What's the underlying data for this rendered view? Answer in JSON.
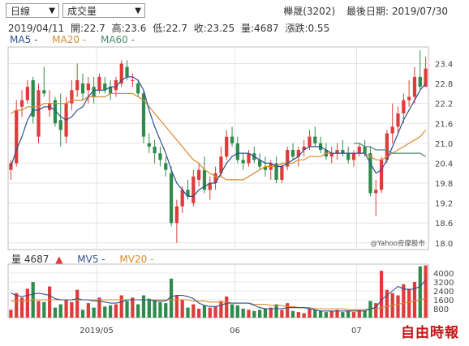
{
  "controls": {
    "period_select": "日線",
    "indicator_select": "成交量"
  },
  "header": {
    "stock": "櫸晟(3202)",
    "last_date_label": "最後日期: 2019/07/30"
  },
  "info": {
    "date": "2019/04/11",
    "open": "開:22.7",
    "high": "高:23.6",
    "low": "低:22.7",
    "close": "收:23.25",
    "volume": "量:4687",
    "change": "漲跌:0.55"
  },
  "ma_legend": {
    "ma5": "MA5 -",
    "ma20": "MA20 -",
    "ma60": "MA60 -"
  },
  "vol_legend": {
    "vol": "量 4687",
    "arrow": "▲",
    "mv5": "MV5 -",
    "mv20": "MV20 -"
  },
  "colors": {
    "up": "#e03b3b",
    "down": "#2e8b4b",
    "ma5": "#2f4f8f",
    "ma20": "#d98a2b",
    "ma60": "#4c8a6a"
  },
  "credit": "@Yahoo奇摩股市",
  "logo_text": "自由時報",
  "chart_data": {
    "type": "candlestick",
    "price_axis": {
      "ticks": [
        "23.4",
        "22.8",
        "22.2",
        "21.6",
        "21.0",
        "20.4",
        "19.8",
        "19.2",
        "18.6",
        "18.0"
      ],
      "range": [
        17.8,
        23.9
      ]
    },
    "volume_axis": {
      "ticks": [
        "4000",
        "3200",
        "2400",
        "1600",
        "800"
      ],
      "range": [
        0,
        4800
      ]
    },
    "x_labels": [
      {
        "label": "2019/05",
        "index": 16
      },
      {
        "label": "06",
        "index": 41
      },
      {
        "label": "07",
        "index": 63
      }
    ],
    "candles": [
      [
        20.2,
        20.5,
        19.9,
        20.4,
        700
      ],
      [
        20.4,
        22.3,
        20.3,
        22.0,
        2200
      ],
      [
        22.1,
        22.6,
        21.8,
        22.3,
        1800
      ],
      [
        22.3,
        22.9,
        22.2,
        22.7,
        2600
      ],
      [
        22.9,
        23.0,
        21.6,
        21.8,
        3200
      ],
      [
        21.2,
        22.8,
        21.0,
        22.6,
        1500
      ],
      [
        22.6,
        23.3,
        22.4,
        22.5,
        1400
      ],
      [
        22.0,
        22.6,
        21.8,
        22.2,
        2800
      ],
      [
        22.3,
        22.4,
        21.5,
        21.6,
        900
      ],
      [
        21.7,
        22.5,
        20.9,
        21.4,
        1200
      ],
      [
        21.2,
        22.4,
        21.0,
        22.2,
        1600
      ],
      [
        22.2,
        22.9,
        22.0,
        22.6,
        1400
      ],
      [
        22.6,
        23.4,
        22.4,
        22.9,
        2500
      ],
      [
        22.8,
        23.1,
        22.3,
        22.5,
        700
      ],
      [
        22.6,
        23.0,
        22.2,
        22.8,
        1300
      ],
      [
        22.7,
        23.0,
        22.2,
        22.4,
        900
      ],
      [
        22.6,
        23.1,
        22.5,
        23.0,
        1800
      ],
      [
        22.8,
        23.0,
        22.5,
        22.6,
        1000
      ],
      [
        22.7,
        22.9,
        22.3,
        22.5,
        1100
      ],
      [
        22.6,
        23.0,
        22.4,
        22.9,
        1200
      ],
      [
        22.8,
        23.5,
        22.7,
        23.4,
        2000
      ],
      [
        23.3,
        23.5,
        22.9,
        23.0,
        1500
      ],
      [
        22.9,
        23.1,
        22.7,
        22.9,
        1800
      ],
      [
        22.8,
        22.9,
        22.4,
        22.5,
        1200
      ],
      [
        22.5,
        22.6,
        21.0,
        21.2,
        2000
      ],
      [
        21.0,
        21.3,
        20.7,
        20.9,
        1700
      ],
      [
        20.9,
        21.1,
        20.4,
        20.7,
        1600
      ],
      [
        20.7,
        20.9,
        20.3,
        20.5,
        1400
      ],
      [
        20.4,
        20.6,
        20.0,
        20.2,
        1300
      ],
      [
        20.1,
        20.3,
        18.5,
        18.6,
        3500
      ],
      [
        18.6,
        19.3,
        18.0,
        19.1,
        2000
      ],
      [
        19.1,
        19.7,
        18.9,
        19.6,
        1600
      ],
      [
        19.6,
        19.9,
        19.3,
        19.4,
        900
      ],
      [
        19.2,
        20.2,
        19.1,
        20.0,
        1200
      ],
      [
        19.9,
        20.4,
        19.7,
        20.2,
        800
      ],
      [
        20.2,
        20.6,
        19.5,
        19.6,
        1100
      ],
      [
        19.6,
        20.0,
        19.3,
        19.8,
        900
      ],
      [
        19.8,
        20.3,
        19.6,
        20.1,
        1000
      ],
      [
        20.1,
        20.9,
        20.0,
        20.6,
        1500
      ],
      [
        20.6,
        21.4,
        20.5,
        21.2,
        1900
      ],
      [
        21.2,
        21.5,
        20.9,
        21.0,
        1200
      ],
      [
        21.0,
        21.2,
        20.4,
        20.5,
        1100
      ],
      [
        20.5,
        20.7,
        20.2,
        20.4,
        800
      ],
      [
        20.4,
        20.8,
        20.3,
        20.7,
        700
      ],
      [
        20.7,
        20.9,
        20.4,
        20.5,
        600
      ],
      [
        20.5,
        20.7,
        20.2,
        20.3,
        700
      ],
      [
        20.3,
        20.6,
        20.0,
        20.2,
        800
      ],
      [
        20.2,
        20.5,
        19.9,
        20.4,
        900
      ],
      [
        20.4,
        20.6,
        19.8,
        19.9,
        1200
      ],
      [
        19.9,
        20.4,
        19.8,
        20.3,
        700
      ],
      [
        20.3,
        20.9,
        20.2,
        20.8,
        1300
      ],
      [
        20.8,
        21.0,
        20.5,
        20.6,
        600
      ],
      [
        20.6,
        20.9,
        20.3,
        20.8,
        500
      ],
      [
        20.8,
        21.1,
        20.6,
        20.9,
        400
      ],
      [
        20.9,
        21.4,
        20.8,
        21.2,
        800
      ],
      [
        21.2,
        21.5,
        20.9,
        21.0,
        700
      ],
      [
        21.0,
        21.2,
        20.7,
        20.8,
        600
      ],
      [
        20.8,
        21.0,
        20.5,
        20.6,
        500
      ],
      [
        20.6,
        20.9,
        20.4,
        20.7,
        600
      ],
      [
        20.7,
        21.0,
        20.5,
        20.8,
        700
      ],
      [
        20.8,
        21.1,
        20.6,
        20.7,
        500
      ],
      [
        20.7,
        20.9,
        20.4,
        20.5,
        600
      ],
      [
        20.5,
        20.8,
        20.3,
        20.7,
        500
      ],
      [
        20.7,
        21.0,
        20.6,
        20.9,
        700
      ],
      [
        20.9,
        21.1,
        20.6,
        20.7,
        600
      ],
      [
        20.7,
        20.9,
        19.4,
        19.5,
        1500
      ],
      [
        19.5,
        19.9,
        18.8,
        19.6,
        1300
      ],
      [
        19.6,
        20.6,
        19.5,
        20.5,
        4200
      ],
      [
        20.5,
        21.4,
        20.4,
        21.3,
        2500
      ],
      [
        21.3,
        22.2,
        21.0,
        21.5,
        2200
      ],
      [
        21.5,
        22.1,
        21.3,
        21.9,
        2000
      ],
      [
        21.9,
        22.5,
        21.6,
        22.3,
        3000
      ],
      [
        22.3,
        22.9,
        22.1,
        22.4,
        2600
      ],
      [
        22.4,
        23.3,
        22.2,
        23.0,
        3200
      ],
      [
        23.0,
        23.8,
        22.6,
        22.7,
        4600
      ],
      [
        22.7,
        23.6,
        22.7,
        23.25,
        4687
      ]
    ],
    "ma5_line": [
      20.3,
      20.8,
      21.2,
      21.7,
      22.0,
      22.0,
      22.1,
      22.1,
      22.0,
      21.8,
      21.7,
      21.8,
      22.0,
      22.1,
      22.4,
      22.6,
      22.6,
      22.6,
      22.7,
      22.7,
      22.9,
      23.0,
      23.0,
      22.9,
      22.6,
      22.0,
      21.5,
      21.1,
      20.7,
      20.2,
      19.8,
      19.6,
      19.4,
      19.4,
      19.6,
      19.7,
      19.8,
      19.8,
      20.1,
      20.4,
      20.6,
      20.7,
      20.7,
      20.7,
      20.6,
      20.5,
      20.4,
      20.4,
      20.3,
      20.3,
      20.4,
      20.5,
      20.6,
      20.8,
      20.9,
      20.9,
      20.9,
      20.8,
      20.7,
      20.7,
      20.7,
      20.7,
      20.7,
      20.7,
      20.7,
      20.4,
      20.1,
      20.2,
      20.5,
      20.9,
      21.3,
      21.7,
      22.0,
      22.3,
      22.6,
      22.8
    ],
    "ma20_line": [
      21.9,
      22.0,
      22.0,
      22.1,
      22.1,
      22.1,
      22.2,
      22.2,
      22.2,
      22.2,
      22.2,
      22.3,
      22.3,
      22.3,
      22.4,
      22.4,
      22.4,
      22.4,
      22.5,
      22.5,
      22.5,
      22.5,
      22.5,
      22.4,
      22.3,
      22.1,
      21.9,
      21.7,
      21.5,
      21.3,
      21.1,
      20.9,
      20.7,
      20.5,
      20.4,
      20.2,
      20.1,
      20.0,
      20.0,
      19.9,
      19.9,
      19.9,
      19.9,
      20.0,
      20.1,
      20.2,
      20.3,
      20.3,
      20.3,
      20.4,
      20.4,
      20.4,
      20.5,
      20.5,
      20.6,
      20.6,
      20.6,
      20.7,
      20.7,
      20.7,
      20.7,
      20.7,
      20.7,
      20.7,
      20.7,
      20.6,
      20.5,
      20.5,
      20.6,
      20.7,
      20.8,
      20.9,
      21.0,
      21.1,
      21.2,
      21.4
    ],
    "ma60_line": [
      null,
      null,
      null,
      null,
      null,
      null,
      null,
      null,
      null,
      null,
      null,
      null,
      null,
      null,
      null,
      null,
      null,
      null,
      null,
      null,
      null,
      null,
      null,
      null,
      null,
      null,
      null,
      null,
      null,
      null,
      null,
      null,
      null,
      null,
      null,
      null,
      null,
      null,
      null,
      null,
      null,
      null,
      null,
      null,
      null,
      null,
      null,
      null,
      null,
      null,
      null,
      null,
      null,
      null,
      null,
      null,
      null,
      null,
      null,
      null,
      null,
      null,
      21.0,
      21.0,
      20.9,
      20.9,
      20.8,
      20.8,
      20.8,
      20.7,
      20.7,
      20.7,
      20.7,
      20.7,
      20.7,
      20.6
    ],
    "mv5_line": [
      2200,
      2000,
      1900,
      2000,
      2100,
      2200,
      2100,
      2000,
      1700,
      1600,
      1600,
      1600,
      1700,
      1600,
      1600,
      1500,
      1500,
      1400,
      1300,
      1300,
      1400,
      1600,
      1600,
      1600,
      1600,
      1600,
      1500,
      1500,
      1500,
      1900,
      2000,
      2000,
      1900,
      1700,
      1300,
      1100,
      1000,
      1000,
      1100,
      1300,
      1300,
      1300,
      1300,
      1300,
      1100,
      900,
      800,
      800,
      800,
      800,
      900,
      900,
      900,
      900,
      800,
      700,
      600,
      600,
      600,
      600,
      600,
      600,
      600,
      600,
      600,
      800,
      900,
      1600,
      2000,
      2400,
      2800,
      2600,
      2500,
      2600,
      2800,
      3400
    ],
    "mv20_line": [
      1500,
      1500,
      1500,
      1500,
      1600,
      1600,
      1600,
      1600,
      1600,
      1600,
      1600,
      1600,
      1600,
      1600,
      1600,
      1600,
      1600,
      1600,
      1600,
      1600,
      1600,
      1600,
      1600,
      1600,
      1600,
      1600,
      1600,
      1600,
      1600,
      1600,
      1600,
      1600,
      1600,
      1500,
      1500,
      1500,
      1400,
      1400,
      1400,
      1400,
      1300,
      1300,
      1300,
      1300,
      1200,
      1200,
      1200,
      1100,
      1100,
      1100,
      1000,
      1000,
      900,
      900,
      900,
      800,
      800,
      800,
      800,
      800,
      800,
      700,
      700,
      700,
      700,
      800,
      800,
      900,
      1000,
      1100,
      1200,
      1300,
      1400,
      1500,
      1600,
      1700
    ]
  }
}
